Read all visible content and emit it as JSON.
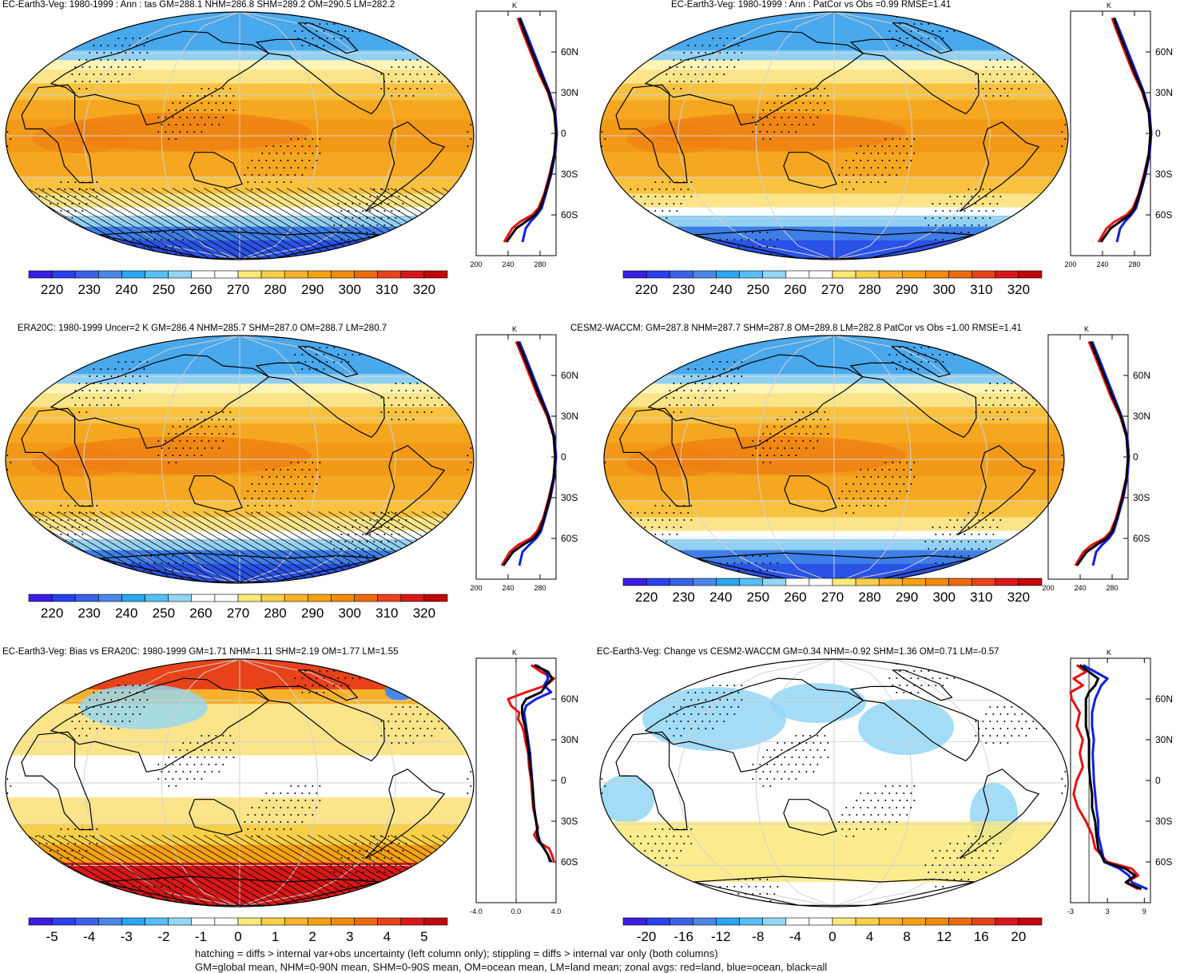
{
  "chart_data": [
    {
      "type": "heatmap",
      "title": "EC-Earth3-Veg: 1980-1999 : Ann : tas GM=288.1 NHM=286.8 SHM=289.2 OM=290.5 LM=282.2",
      "field": "absolute",
      "colorbar": {
        "ticks": [
          "220",
          "230",
          "240",
          "250",
          "260",
          "270",
          "280",
          "290",
          "300",
          "310",
          "320"
        ]
      },
      "profile": {
        "unit": "K",
        "xticks": [
          "200",
          "240",
          "280"
        ],
        "yticks": [
          "60N",
          "30N",
          "0",
          "30S",
          "60S"
        ],
        "xlim": [
          200,
          300
        ],
        "series": [
          {
            "color": "#e81010",
            "lat": [
              85,
              75,
              60,
              45,
              30,
              15,
              0,
              -15,
              -30,
              -45,
              -55,
              -60,
              -65,
              -70,
              -80
            ],
            "values": [
              252,
              258,
              268,
              278,
              290,
              298,
              300,
              298,
              292,
              285,
              278,
              270,
              255,
              245,
              235
            ]
          },
          {
            "color": "#1020e0",
            "lat": [
              85,
              75,
              60,
              45,
              30,
              15,
              0,
              -15,
              -30,
              -45,
              -55,
              -60,
              -65,
              -70,
              -80
            ],
            "values": [
              255,
              262,
              272,
              282,
              292,
              299,
              301,
              299,
              294,
              287,
              282,
              276,
              268,
              262,
              258
            ]
          },
          {
            "color": "#000000",
            "lat": [
              85,
              75,
              60,
              45,
              30,
              15,
              0,
              -15,
              -30,
              -45,
              -55,
              -60,
              -65,
              -70,
              -80
            ],
            "values": [
              254,
              260,
              270,
              280,
              291,
              298,
              300,
              298,
              293,
              286,
              280,
              274,
              262,
              250,
              238
            ]
          }
        ]
      }
    },
    {
      "type": "heatmap",
      "title": "EC-Earth3-Veg: 1980-1999 : Ann : PatCor vs Obs =0.99 RMSE=1.41",
      "field": "absolute",
      "colorbar": {
        "ticks": [
          "220",
          "230",
          "240",
          "250",
          "260",
          "270",
          "280",
          "290",
          "300",
          "310",
          "320"
        ]
      },
      "profile": {
        "unit": "K",
        "xticks": [
          "200",
          "240",
          "280"
        ],
        "yticks": [
          "60N",
          "30N",
          "0",
          "30S",
          "60S"
        ],
        "xlim": [
          200,
          300
        ],
        "series": [
          {
            "color": "#e81010",
            "lat": [
              85,
              75,
              60,
              45,
              30,
              15,
              0,
              -15,
              -30,
              -45,
              -55,
              -60,
              -65,
              -70,
              -80
            ],
            "values": [
              252,
              258,
              268,
              278,
              290,
              298,
              300,
              298,
              292,
              285,
              278,
              270,
              255,
              245,
              235
            ]
          },
          {
            "color": "#1020e0",
            "lat": [
              85,
              75,
              60,
              45,
              30,
              15,
              0,
              -15,
              -30,
              -45,
              -55,
              -60,
              -65,
              -70,
              -80
            ],
            "values": [
              255,
              262,
              272,
              282,
              292,
              299,
              301,
              299,
              294,
              287,
              282,
              276,
              268,
              262,
              258
            ]
          },
          {
            "color": "#000000",
            "lat": [
              85,
              75,
              60,
              45,
              30,
              15,
              0,
              -15,
              -30,
              -45,
              -55,
              -60,
              -65,
              -70,
              -80
            ],
            "values": [
              254,
              260,
              270,
              280,
              291,
              298,
              300,
              298,
              293,
              286,
              280,
              274,
              262,
              250,
              238
            ]
          }
        ]
      }
    },
    {
      "type": "heatmap",
      "title": "ERA20C: 1980-1999 Uncer=2 K GM=286.4 NHM=285.7 SHM=287.0 OM=288.7 LM=280.7",
      "field": "absolute",
      "colorbar": {
        "ticks": [
          "220",
          "230",
          "240",
          "250",
          "260",
          "270",
          "280",
          "290",
          "300",
          "310",
          "320"
        ]
      },
      "profile": {
        "unit": "K",
        "xticks": [
          "200",
          "240",
          "280"
        ],
        "yticks": [
          "60N",
          "30N",
          "0",
          "30S",
          "60S"
        ],
        "xlim": [
          200,
          300
        ],
        "series": [
          {
            "color": "#e81010",
            "lat": [
              85,
              75,
              60,
              45,
              30,
              15,
              0,
              -15,
              -30,
              -45,
              -55,
              -60,
              -65,
              -70,
              -80
            ],
            "values": [
              250,
              257,
              267,
              277,
              289,
              297,
              299,
              297,
              291,
              284,
              276,
              268,
              252,
              242,
              232
            ]
          },
          {
            "color": "#1020e0",
            "lat": [
              85,
              75,
              60,
              45,
              30,
              15,
              0,
              -15,
              -30,
              -45,
              -55,
              -60,
              -65,
              -70,
              -80
            ],
            "values": [
              254,
              261,
              271,
              281,
              291,
              298,
              300,
              298,
              293,
              286,
              281,
              275,
              266,
              258,
              254
            ]
          },
          {
            "color": "#000000",
            "lat": [
              85,
              75,
              60,
              45,
              30,
              15,
              0,
              -15,
              -30,
              -45,
              -55,
              -60,
              -65,
              -70,
              -80
            ],
            "values": [
              252,
              259,
              269,
              279,
              290,
              297,
              299,
              297,
              292,
              285,
              279,
              272,
              258,
              246,
              234
            ]
          }
        ]
      }
    },
    {
      "type": "heatmap",
      "title": "CESM2-WACCM: GM=287.8 NHM=287.7 SHM=287.8 OM=289.8 LM=282.8 PatCor vs Obs =1.00 RMSE=1.41",
      "field": "absolute",
      "colorbar": {
        "ticks": [
          "220",
          "230",
          "240",
          "250",
          "260",
          "270",
          "280",
          "290",
          "300",
          "310",
          "320"
        ]
      },
      "profile": {
        "unit": "K",
        "xticks": [
          "200",
          "240",
          "280"
        ],
        "yticks": [
          "60N",
          "30N",
          "0",
          "30S",
          "60S"
        ],
        "xlim": [
          200,
          300
        ],
        "series": [
          {
            "color": "#e81010",
            "lat": [
              85,
              75,
              60,
              45,
              30,
              15,
              0,
              -15,
              -30,
              -45,
              -55,
              -60,
              -65,
              -70,
              -80
            ],
            "values": [
              251,
              258,
              268,
              278,
              290,
              298,
              300,
              298,
              292,
              285,
              278,
              270,
              254,
              244,
              234
            ]
          },
          {
            "color": "#1020e0",
            "lat": [
              85,
              75,
              60,
              45,
              30,
              15,
              0,
              -15,
              -30,
              -45,
              -55,
              -60,
              -65,
              -70,
              -80
            ],
            "values": [
              255,
              262,
              272,
              282,
              292,
              299,
              301,
              299,
              294,
              287,
              282,
              276,
              267,
              260,
              256
            ]
          },
          {
            "color": "#000000",
            "lat": [
              85,
              75,
              60,
              45,
              30,
              15,
              0,
              -15,
              -30,
              -45,
              -55,
              -60,
              -65,
              -70,
              -80
            ],
            "values": [
              253,
              260,
              270,
              280,
              291,
              298,
              300,
              298,
              293,
              286,
              280,
              273,
              260,
              248,
              236
            ]
          }
        ]
      }
    },
    {
      "type": "heatmap",
      "title": "EC-Earth3-Veg: Bias vs ERA20C: 1980-1999 GM=1.71 NHM=1.11 SHM=2.19 OM=1.77 LM=1.55",
      "field": "bias",
      "colorbar": {
        "ticks": [
          "-5",
          "-4",
          "-3",
          "-2",
          "-1",
          "0",
          "1",
          "2",
          "3",
          "4",
          "5"
        ]
      },
      "profile": {
        "unit": "K",
        "xticks": [
          "-4.0",
          "0.0",
          "4.0"
        ],
        "yticks": [
          "60N",
          "30N",
          "0",
          "30S",
          "60S"
        ],
        "xlim": [
          -4,
          4
        ],
        "series": [
          {
            "color": "#e81010",
            "lat": [
              85,
              80,
              75,
              70,
              65,
              60,
              55,
              50,
              45,
              40,
              35,
              30,
              20,
              10,
              0,
              -10,
              -20,
              -30,
              -35,
              -40,
              -45,
              -50,
              -55,
              -60
            ],
            "values": [
              1.5,
              2.5,
              3.8,
              3.0,
              1.0,
              -0.8,
              -0.5,
              0.3,
              0.2,
              0.6,
              0.8,
              0.9,
              1.2,
              1.3,
              1.5,
              1.6,
              1.7,
              2.0,
              2.2,
              1.8,
              2.2,
              3.3,
              3.6,
              3.8
            ]
          },
          {
            "color": "#1020e0",
            "lat": [
              85,
              80,
              75,
              70,
              65,
              60,
              55,
              50,
              45,
              40,
              35,
              30,
              20,
              10,
              0,
              -10,
              -20,
              -30,
              -35,
              -40,
              -45,
              -50,
              -55,
              -60
            ],
            "values": [
              2.0,
              3.0,
              3.2,
              2.8,
              3.5,
              2.0,
              1.0,
              0.8,
              0.9,
              1.0,
              1.1,
              1.2,
              1.4,
              1.5,
              1.6,
              1.7,
              1.8,
              2.0,
              2.1,
              2.2,
              2.4,
              2.8,
              3.2,
              3.4
            ]
          },
          {
            "color": "#000000",
            "lat": [
              85,
              80,
              75,
              70,
              65,
              60,
              55,
              50,
              45,
              40,
              35,
              30,
              20,
              10,
              0,
              -10,
              -20,
              -30,
              -35,
              -40,
              -45,
              -50,
              -55,
              -60
            ],
            "values": [
              1.8,
              3.2,
              3.6,
              3.0,
              2.5,
              1.0,
              0.6,
              0.6,
              0.7,
              0.9,
              1.0,
              1.1,
              1.3,
              1.4,
              1.6,
              1.7,
              1.8,
              2.0,
              2.1,
              2.1,
              2.3,
              2.8,
              3.2,
              3.5
            ]
          }
        ]
      }
    },
    {
      "type": "heatmap",
      "title": "EC-Earth3-Veg: Change vs CESM2-WACCM GM=0.34 NHM=-0.92 SHM=1.36 OM=0.71 LM=-0.57",
      "field": "change",
      "colorbar": {
        "ticks": [
          "-20",
          "-16",
          "-12",
          "-8",
          "-4",
          "0",
          "4",
          "8",
          "12",
          "16",
          "20"
        ]
      },
      "profile": {
        "unit": "K",
        "xticks": [
          "-3",
          "3",
          "9"
        ],
        "yticks": [
          "60N",
          "30N",
          "0",
          "30S",
          "60S"
        ],
        "xlim": [
          -3,
          10
        ],
        "series": [
          {
            "color": "#e81010",
            "lat": [
              85,
              80,
              75,
              70,
              65,
              60,
              50,
              40,
              30,
              20,
              10,
              0,
              -10,
              -20,
              -30,
              -40,
              -50,
              -60,
              -65,
              -70,
              -75,
              -80
            ],
            "values": [
              -2.0,
              -0.5,
              -2.5,
              -1.0,
              -3.0,
              -2.8,
              -1.5,
              -2.0,
              -1.0,
              -1.5,
              -1.0,
              -2.0,
              -2.5,
              -1.8,
              -0.5,
              0.5,
              1.0,
              3.0,
              7.0,
              8.0,
              6.0,
              8.0
            ]
          },
          {
            "color": "#1020e0",
            "lat": [
              85,
              80,
              75,
              70,
              65,
              60,
              50,
              40,
              30,
              20,
              10,
              0,
              -10,
              -20,
              -30,
              -40,
              -50,
              -60,
              -65,
              -70,
              -75,
              -80
            ],
            "values": [
              -1.0,
              1.0,
              3.0,
              2.0,
              1.5,
              1.0,
              0.5,
              0.5,
              0.8,
              0.6,
              0.7,
              0.8,
              1.0,
              1.2,
              1.5,
              1.5,
              2.0,
              2.5,
              5.0,
              6.5,
              7.0,
              9.5
            ]
          },
          {
            "color": "#000000",
            "lat": [
              85,
              80,
              75,
              70,
              65,
              60,
              50,
              40,
              30,
              20,
              10,
              0,
              -10,
              -20,
              -30,
              -40,
              -50,
              -60,
              -65,
              -70,
              -75,
              -80
            ],
            "values": [
              -1.5,
              0.0,
              1.5,
              1.0,
              0.0,
              -0.5,
              -0.5,
              -0.5,
              0.0,
              0.0,
              0.0,
              0.2,
              0.5,
              0.5,
              1.0,
              1.2,
              1.5,
              2.5,
              6.0,
              7.5,
              6.0,
              8.5
            ]
          }
        ]
      }
    }
  ],
  "footer": {
    "line1": "hatching = diffs > internal var+obs uncertainty (left column only); stippling = diffs > internal var only (both columns)",
    "line2": "GM=global mean, NHM=0-90N mean, SHM=0-90S mean, OM=ocean mean, LM=land mean; zonal avgs: red=land, blue=ocean, black=all"
  },
  "colors": {
    "scale": [
      "#3a1ee0",
      "#2a40ee",
      "#3a62e8",
      "#4a86e6",
      "#2aa6f0",
      "#56c0f6",
      "#92d6f6",
      "#ffffff",
      "#ffffff",
      "#fbe97a",
      "#f8cf48",
      "#f7b22c",
      "#f6a114",
      "#f28a0c",
      "#ee6a10",
      "#e8421a",
      "#d81818",
      "#c00808"
    ],
    "land": "#000000",
    "graticule": "#d2d2d2"
  }
}
